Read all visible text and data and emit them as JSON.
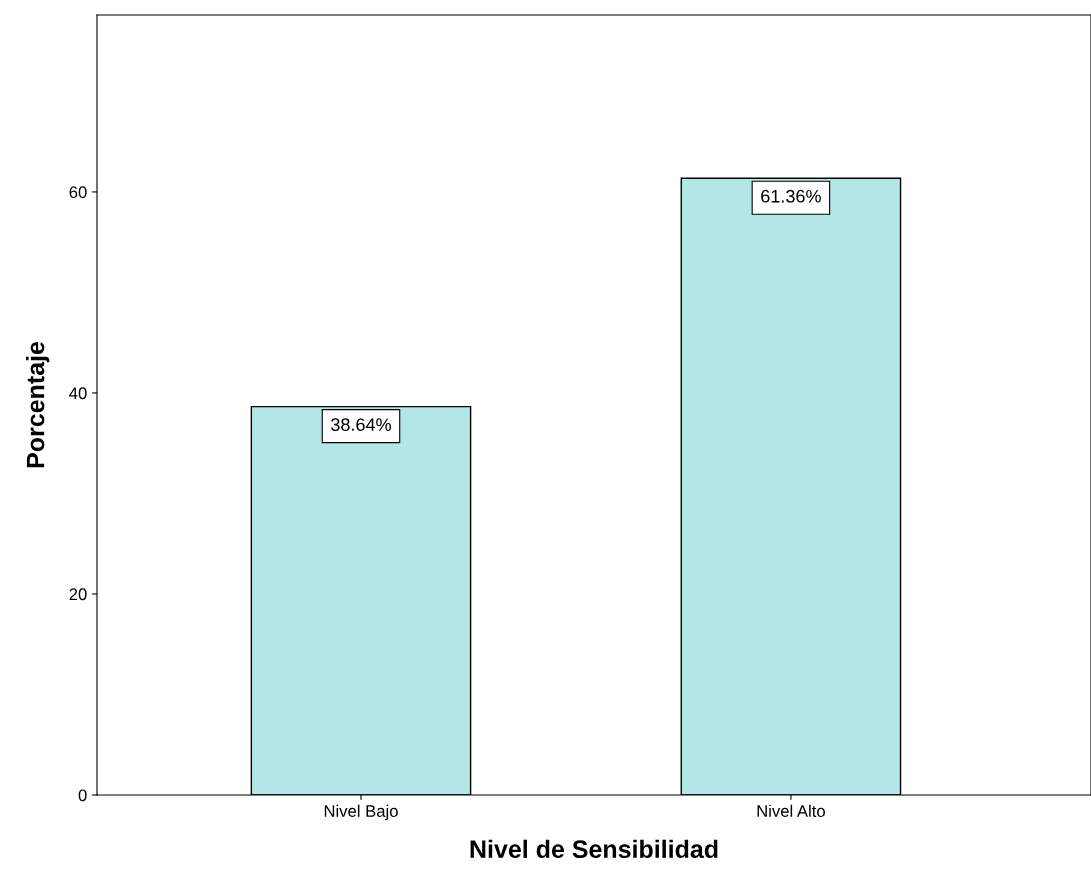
{
  "chart_data": {
    "type": "bar",
    "xlabel": "Nivel de Sensibilidad",
    "ylabel": "Porcentaje",
    "categories": [
      "Nivel Bajo",
      "Nivel Alto"
    ],
    "values": [
      38.64,
      61.36
    ],
    "value_labels": [
      "38.64%",
      "61.36%"
    ],
    "color": "#b3e6e6",
    "ylim": [
      0,
      77.6
    ],
    "yticks": [
      0,
      20,
      40,
      60
    ],
    "grid": false,
    "legend": false
  }
}
